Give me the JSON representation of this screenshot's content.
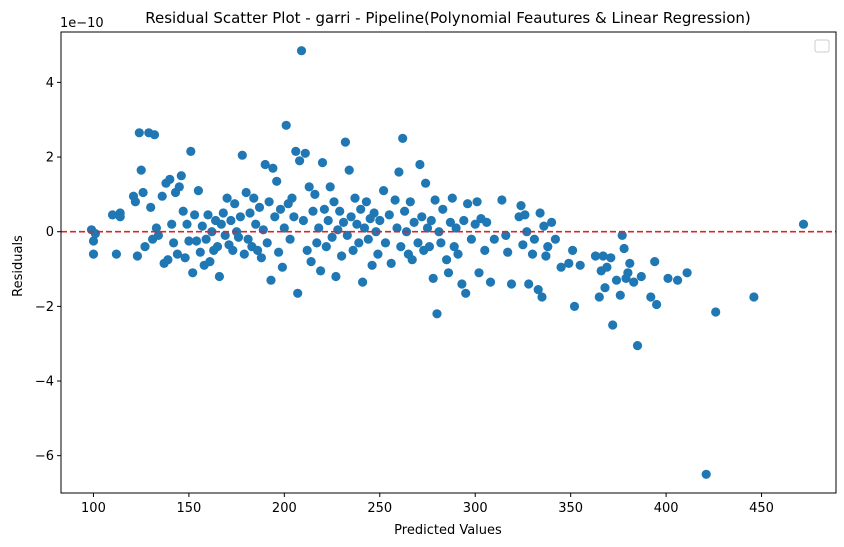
{
  "chart_data": {
    "type": "scatter",
    "title": "Residual Scatter Plot - garri  - Pipeline(Polynomial Feautures & Linear Regression)",
    "xlabel": "Predicted Values",
    "ylabel": "Residuals",
    "y_offset_label": "1e−10",
    "xlim": [
      83,
      489
    ],
    "ylim": [
      -7.0,
      5.35
    ],
    "x_ticks": [
      100,
      150,
      200,
      250,
      300,
      350,
      400,
      450
    ],
    "y_ticks": [
      -6,
      -4,
      -2,
      0,
      2,
      4
    ],
    "y_tick_labels": [
      "−6",
      "−4",
      "−2",
      "0",
      "2",
      "4"
    ],
    "grid": false,
    "legend": "top-right (empty)",
    "point_color": "#1f77b4",
    "reference_line": {
      "y": 0,
      "color": "#d62728",
      "style": "dashed"
    },
    "series": [
      {
        "points": [
          [
            99,
            0.05
          ],
          [
            100,
            -0.25
          ],
          [
            100,
            -0.6
          ],
          [
            101,
            -0.05
          ],
          [
            110,
            0.45
          ],
          [
            112,
            -0.6
          ],
          [
            114,
            0.5
          ],
          [
            114,
            0.4
          ],
          [
            121,
            0.95
          ],
          [
            122,
            0.8
          ],
          [
            123,
            -0.65
          ],
          [
            124,
            2.65
          ],
          [
            125,
            1.65
          ],
          [
            126,
            1.05
          ],
          [
            127,
            -0.4
          ],
          [
            129,
            2.65
          ],
          [
            130,
            0.65
          ],
          [
            131,
            -0.2
          ],
          [
            132,
            2.6
          ],
          [
            133,
            0.1
          ],
          [
            134,
            -0.1
          ],
          [
            136,
            0.95
          ],
          [
            137,
            -0.85
          ],
          [
            138,
            1.3
          ],
          [
            139,
            -0.75
          ],
          [
            140,
            1.4
          ],
          [
            141,
            0.2
          ],
          [
            142,
            -0.3
          ],
          [
            143,
            1.05
          ],
          [
            144,
            -0.6
          ],
          [
            145,
            1.2
          ],
          [
            146,
            1.5
          ],
          [
            147,
            0.55
          ],
          [
            148,
            -0.7
          ],
          [
            149,
            0.2
          ],
          [
            150,
            -0.25
          ],
          [
            151,
            2.15
          ],
          [
            152,
            -1.1
          ],
          [
            153,
            0.45
          ],
          [
            154,
            -0.25
          ],
          [
            155,
            1.1
          ],
          [
            156,
            -0.55
          ],
          [
            157,
            0.15
          ],
          [
            158,
            -0.9
          ],
          [
            159,
            -0.2
          ],
          [
            160,
            0.45
          ],
          [
            161,
            -0.8
          ],
          [
            162,
            0.0
          ],
          [
            163,
            -0.5
          ],
          [
            164,
            0.3
          ],
          [
            165,
            -0.4
          ],
          [
            166,
            -1.2
          ],
          [
            167,
            0.2
          ],
          [
            168,
            0.5
          ],
          [
            169,
            -0.1
          ],
          [
            170,
            0.9
          ],
          [
            171,
            -0.35
          ],
          [
            172,
            0.3
          ],
          [
            173,
            -0.5
          ],
          [
            174,
            0.75
          ],
          [
            175,
            0.0
          ],
          [
            176,
            -0.15
          ],
          [
            177,
            0.4
          ],
          [
            178,
            2.05
          ],
          [
            179,
            -0.6
          ],
          [
            180,
            1.05
          ],
          [
            181,
            -0.2
          ],
          [
            182,
            0.5
          ],
          [
            183,
            -0.4
          ],
          [
            184,
            0.9
          ],
          [
            185,
            0.2
          ],
          [
            186,
            -0.5
          ],
          [
            187,
            0.65
          ],
          [
            188,
            -0.7
          ],
          [
            189,
            0.05
          ],
          [
            190,
            1.8
          ],
          [
            191,
            -0.3
          ],
          [
            192,
            0.8
          ],
          [
            193,
            -1.3
          ],
          [
            194,
            1.7
          ],
          [
            195,
            0.4
          ],
          [
            196,
            1.35
          ],
          [
            197,
            -0.55
          ],
          [
            198,
            0.6
          ],
          [
            199,
            -0.95
          ],
          [
            200,
            0.1
          ],
          [
            201,
            2.85
          ],
          [
            202,
            0.75
          ],
          [
            203,
            -0.2
          ],
          [
            204,
            0.9
          ],
          [
            205,
            0.4
          ],
          [
            206,
            2.15
          ],
          [
            207,
            -1.65
          ],
          [
            208,
            1.9
          ],
          [
            209,
            4.85
          ],
          [
            210,
            0.3
          ],
          [
            211,
            2.1
          ],
          [
            212,
            -0.5
          ],
          [
            213,
            1.2
          ],
          [
            214,
            -0.8
          ],
          [
            215,
            0.55
          ],
          [
            216,
            1.0
          ],
          [
            217,
            -0.3
          ],
          [
            218,
            0.1
          ],
          [
            219,
            -1.05
          ],
          [
            220,
            1.85
          ],
          [
            221,
            0.6
          ],
          [
            222,
            -0.4
          ],
          [
            223,
            0.3
          ],
          [
            224,
            1.2
          ],
          [
            225,
            -0.15
          ],
          [
            226,
            0.8
          ],
          [
            227,
            -1.2
          ],
          [
            228,
            0.05
          ],
          [
            229,
            0.55
          ],
          [
            230,
            -0.65
          ],
          [
            231,
            0.25
          ],
          [
            232,
            2.4
          ],
          [
            233,
            -0.1
          ],
          [
            234,
            1.65
          ],
          [
            235,
            0.4
          ],
          [
            236,
            -0.5
          ],
          [
            237,
            0.9
          ],
          [
            238,
            0.2
          ],
          [
            239,
            -0.3
          ],
          [
            240,
            0.6
          ],
          [
            241,
            -1.35
          ],
          [
            242,
            0.1
          ],
          [
            243,
            0.8
          ],
          [
            244,
            -0.2
          ],
          [
            245,
            0.35
          ],
          [
            246,
            -0.9
          ],
          [
            247,
            0.5
          ],
          [
            248,
            0.0
          ],
          [
            249,
            -0.6
          ],
          [
            250,
            0.3
          ],
          [
            252,
            1.1
          ],
          [
            253,
            -0.3
          ],
          [
            255,
            0.45
          ],
          [
            256,
            -0.85
          ],
          [
            258,
            0.85
          ],
          [
            259,
            0.1
          ],
          [
            260,
            1.6
          ],
          [
            261,
            -0.4
          ],
          [
            262,
            2.5
          ],
          [
            263,
            0.55
          ],
          [
            264,
            0.0
          ],
          [
            265,
            -0.6
          ],
          [
            266,
            0.8
          ],
          [
            267,
            -0.75
          ],
          [
            268,
            0.25
          ],
          [
            270,
            -0.3
          ],
          [
            271,
            1.8
          ],
          [
            272,
            0.4
          ],
          [
            273,
            -0.5
          ],
          [
            274,
            1.3
          ],
          [
            275,
            0.1
          ],
          [
            276,
            -0.4
          ],
          [
            277,
            0.3
          ],
          [
            278,
            -1.25
          ],
          [
            279,
            0.85
          ],
          [
            280,
            -2.2
          ],
          [
            281,
            0.0
          ],
          [
            282,
            -0.3
          ],
          [
            283,
            0.6
          ],
          [
            285,
            -0.75
          ],
          [
            286,
            -1.1
          ],
          [
            287,
            0.25
          ],
          [
            288,
            0.9
          ],
          [
            289,
            -0.4
          ],
          [
            290,
            0.1
          ],
          [
            291,
            -0.6
          ],
          [
            293,
            -1.4
          ],
          [
            294,
            0.3
          ],
          [
            295,
            -1.65
          ],
          [
            296,
            0.75
          ],
          [
            298,
            -0.2
          ],
          [
            300,
            0.2
          ],
          [
            301,
            0.8
          ],
          [
            302,
            -1.1
          ],
          [
            303,
            0.35
          ],
          [
            305,
            -0.5
          ],
          [
            306,
            0.25
          ],
          [
            308,
            -1.35
          ],
          [
            310,
            -0.2
          ],
          [
            314,
            0.85
          ],
          [
            316,
            -0.1
          ],
          [
            317,
            -0.55
          ],
          [
            319,
            -1.4
          ],
          [
            323,
            0.4
          ],
          [
            324,
            0.7
          ],
          [
            325,
            -0.35
          ],
          [
            326,
            0.45
          ],
          [
            327,
            0.0
          ],
          [
            328,
            -1.4
          ],
          [
            330,
            -0.6
          ],
          [
            331,
            -0.2
          ],
          [
            333,
            -1.55
          ],
          [
            334,
            0.5
          ],
          [
            335,
            -1.75
          ],
          [
            336,
            0.15
          ],
          [
            337,
            -0.65
          ],
          [
            338,
            -0.4
          ],
          [
            340,
            0.25
          ],
          [
            342,
            -0.2
          ],
          [
            345,
            -0.95
          ],
          [
            349,
            -0.85
          ],
          [
            351,
            -0.5
          ],
          [
            352,
            -2.0
          ],
          [
            355,
            -0.9
          ],
          [
            363,
            -0.65
          ],
          [
            365,
            -1.75
          ],
          [
            366,
            -1.05
          ],
          [
            367,
            -0.65
          ],
          [
            368,
            -1.5
          ],
          [
            369,
            -0.95
          ],
          [
            371,
            -0.7
          ],
          [
            372,
            -2.5
          ],
          [
            374,
            -1.3
          ],
          [
            376,
            -1.7
          ],
          [
            377,
            -0.1
          ],
          [
            378,
            -0.45
          ],
          [
            379,
            -1.25
          ],
          [
            380,
            -1.1
          ],
          [
            381,
            -0.85
          ],
          [
            383,
            -1.35
          ],
          [
            385,
            -3.05
          ],
          [
            387,
            -1.2
          ],
          [
            392,
            -1.75
          ],
          [
            394,
            -0.8
          ],
          [
            395,
            -1.95
          ],
          [
            401,
            -1.25
          ],
          [
            406,
            -1.3
          ],
          [
            411,
            -1.1
          ],
          [
            421,
            -6.5
          ],
          [
            426,
            -2.15
          ],
          [
            446,
            -1.75
          ],
          [
            472,
            0.2
          ]
        ]
      }
    ]
  }
}
